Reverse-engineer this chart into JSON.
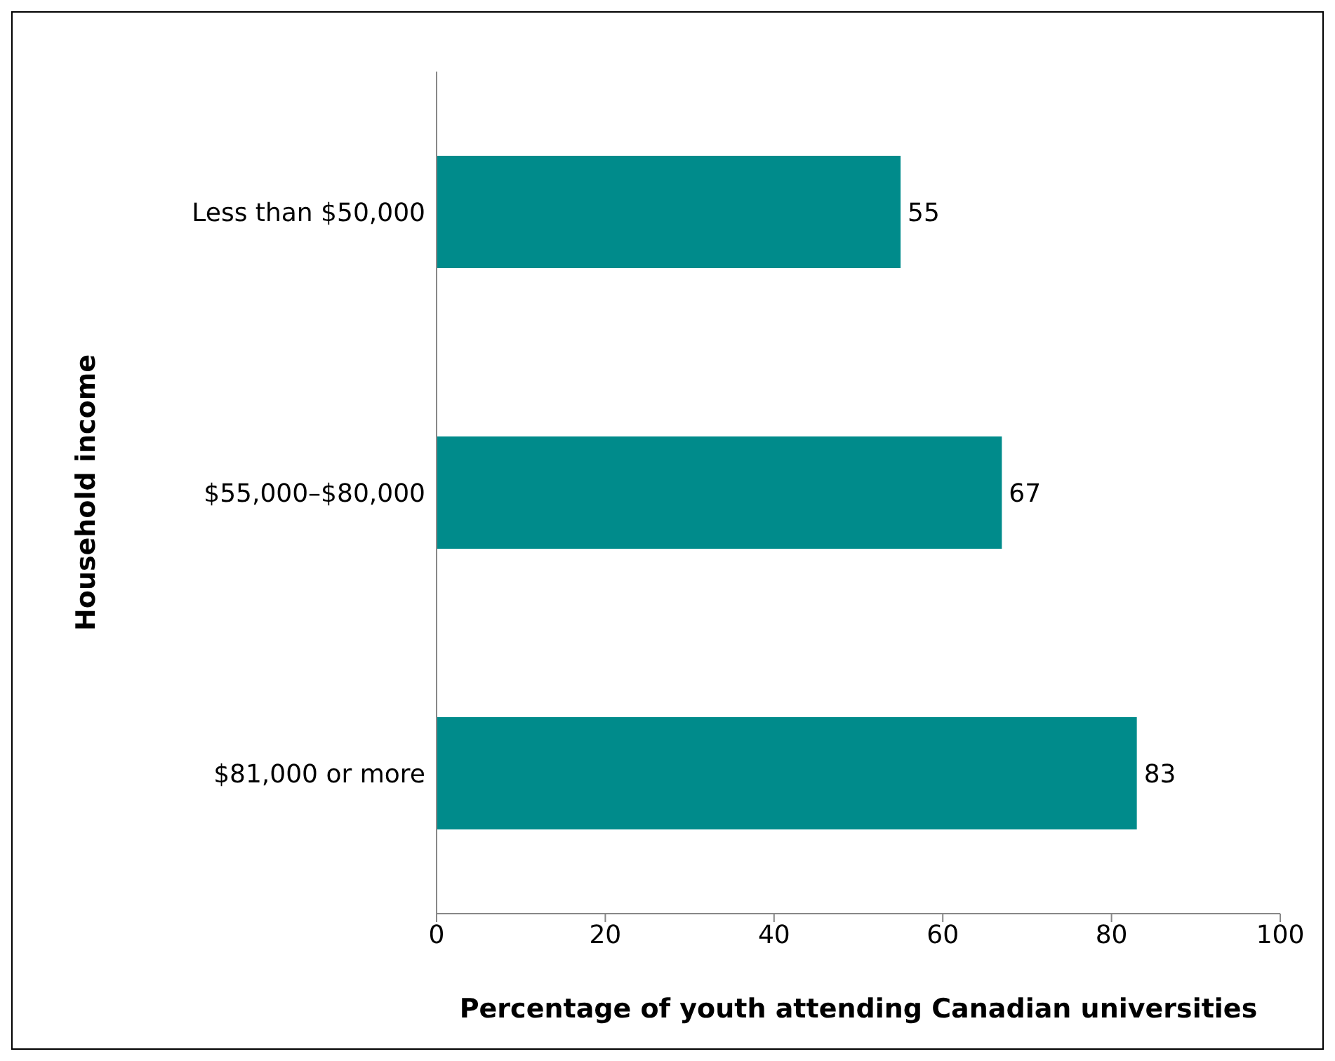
{
  "chart_data": {
    "type": "bar",
    "orientation": "horizontal",
    "categories": [
      "Less than $50,000",
      "$55,000–$80,000",
      "$81,000 or more"
    ],
    "values": [
      55,
      67,
      83
    ],
    "color": "#008b8b",
    "xlim": [
      0,
      100
    ],
    "xticks": [
      0,
      20,
      40,
      60,
      80,
      100
    ],
    "xlabel": "Percentage of youth attending Canadian universities",
    "ylabel": "Household income",
    "data_labels": true,
    "grid": false,
    "legend": false
  }
}
